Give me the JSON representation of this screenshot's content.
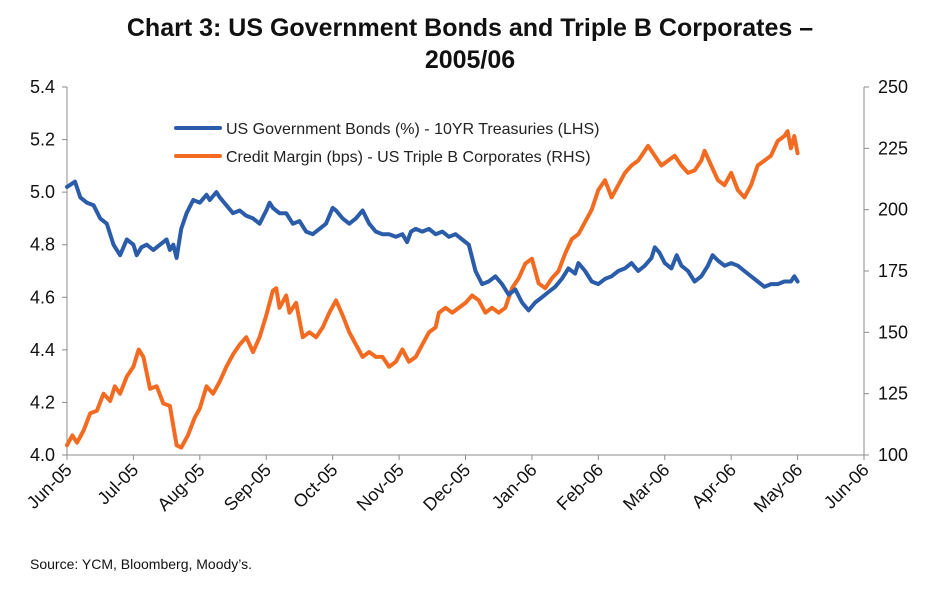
{
  "title_line1": "Chart 3: US Government Bonds and Triple B Corporates –",
  "title_line2": "2005/06",
  "source": "Source: YCM, Bloomberg, Moody’s.",
  "chart_data": {
    "type": "line",
    "title": "Chart 3: US Government Bonds and Triple B Corporates – 2005/06",
    "x_tick_labels": [
      "Jun-05",
      "Jul-05",
      "Aug-05",
      "Sep-05",
      "Oct-05",
      "Nov-05",
      "Dec-05",
      "Jan-06",
      "Feb-06",
      "Mar-06",
      "Apr-06",
      "May-06",
      "Jun-06"
    ],
    "y_left": {
      "ticks": [
        "4.0",
        "4.2",
        "4.4",
        "4.6",
        "4.8",
        "5.0",
        "5.2",
        "5.4"
      ],
      "range": [
        4.0,
        5.4
      ]
    },
    "y_right": {
      "ticks": [
        "100",
        "125",
        "150",
        "175",
        "200",
        "225",
        "250"
      ],
      "range": [
        100,
        250
      ]
    },
    "legend_position": "top-center",
    "grid": false,
    "series": [
      {
        "name": "US Government Bonds (%) - 10YR Treasuries (LHS)",
        "axis": "left",
        "color": "#2a5caa",
        "points": [
          [
            0,
            5.02
          ],
          [
            0.06,
            5.03
          ],
          [
            0.12,
            5.04
          ],
          [
            0.2,
            4.98
          ],
          [
            0.3,
            4.96
          ],
          [
            0.4,
            4.95
          ],
          [
            0.5,
            4.9
          ],
          [
            0.6,
            4.88
          ],
          [
            0.7,
            4.8
          ],
          [
            0.8,
            4.76
          ],
          [
            0.9,
            4.82
          ],
          [
            1.0,
            4.8
          ],
          [
            1.05,
            4.76
          ],
          [
            1.12,
            4.79
          ],
          [
            1.2,
            4.8
          ],
          [
            1.3,
            4.78
          ],
          [
            1.4,
            4.8
          ],
          [
            1.5,
            4.82
          ],
          [
            1.55,
            4.78
          ],
          [
            1.6,
            4.8
          ],
          [
            1.65,
            4.75
          ],
          [
            1.72,
            4.86
          ],
          [
            1.8,
            4.92
          ],
          [
            1.9,
            4.97
          ],
          [
            2.0,
            4.96
          ],
          [
            2.1,
            4.99
          ],
          [
            2.15,
            4.97
          ],
          [
            2.25,
            5.0
          ],
          [
            2.3,
            4.98
          ],
          [
            2.4,
            4.95
          ],
          [
            2.5,
            4.92
          ],
          [
            2.6,
            4.93
          ],
          [
            2.7,
            4.91
          ],
          [
            2.8,
            4.9
          ],
          [
            2.9,
            4.88
          ],
          [
            3.0,
            4.93
          ],
          [
            3.05,
            4.96
          ],
          [
            3.1,
            4.94
          ],
          [
            3.2,
            4.92
          ],
          [
            3.3,
            4.92
          ],
          [
            3.4,
            4.88
          ],
          [
            3.5,
            4.89
          ],
          [
            3.6,
            4.85
          ],
          [
            3.7,
            4.84
          ],
          [
            3.8,
            4.86
          ],
          [
            3.9,
            4.88
          ],
          [
            4.0,
            4.94
          ],
          [
            4.05,
            4.93
          ],
          [
            4.15,
            4.9
          ],
          [
            4.25,
            4.88
          ],
          [
            4.35,
            4.9
          ],
          [
            4.45,
            4.93
          ],
          [
            4.55,
            4.88
          ],
          [
            4.65,
            4.85
          ],
          [
            4.75,
            4.84
          ],
          [
            4.85,
            4.84
          ],
          [
            4.95,
            4.83
          ],
          [
            5.05,
            4.84
          ],
          [
            5.12,
            4.81
          ],
          [
            5.18,
            4.85
          ],
          [
            5.25,
            4.86
          ],
          [
            5.35,
            4.85
          ],
          [
            5.45,
            4.86
          ],
          [
            5.55,
            4.84
          ],
          [
            5.65,
            4.85
          ],
          [
            5.75,
            4.83
          ],
          [
            5.85,
            4.84
          ],
          [
            5.95,
            4.82
          ],
          [
            6.05,
            4.8
          ],
          [
            6.15,
            4.7
          ],
          [
            6.25,
            4.65
          ],
          [
            6.35,
            4.66
          ],
          [
            6.45,
            4.68
          ],
          [
            6.55,
            4.65
          ],
          [
            6.65,
            4.61
          ],
          [
            6.75,
            4.63
          ],
          [
            6.85,
            4.58
          ],
          [
            6.95,
            4.55
          ],
          [
            7.05,
            4.58
          ],
          [
            7.15,
            4.6
          ],
          [
            7.25,
            4.62
          ],
          [
            7.35,
            4.64
          ],
          [
            7.45,
            4.67
          ],
          [
            7.55,
            4.71
          ],
          [
            7.65,
            4.69
          ],
          [
            7.7,
            4.73
          ],
          [
            7.8,
            4.7
          ],
          [
            7.9,
            4.66
          ],
          [
            8.0,
            4.65
          ],
          [
            8.1,
            4.67
          ],
          [
            8.2,
            4.68
          ],
          [
            8.3,
            4.7
          ],
          [
            8.4,
            4.71
          ],
          [
            8.5,
            4.73
          ],
          [
            8.6,
            4.7
          ],
          [
            8.7,
            4.72
          ],
          [
            8.8,
            4.75
          ],
          [
            8.85,
            4.79
          ],
          [
            8.92,
            4.77
          ],
          [
            9.0,
            4.73
          ],
          [
            9.1,
            4.71
          ],
          [
            9.18,
            4.76
          ],
          [
            9.25,
            4.72
          ],
          [
            9.35,
            4.7
          ],
          [
            9.45,
            4.66
          ],
          [
            9.55,
            4.68
          ],
          [
            9.65,
            4.72
          ],
          [
            9.72,
            4.76
          ],
          [
            9.8,
            4.74
          ],
          [
            9.9,
            4.72
          ],
          [
            10.0,
            4.73
          ],
          [
            10.1,
            4.72
          ],
          [
            10.2,
            4.7
          ],
          [
            10.3,
            4.68
          ],
          [
            10.4,
            4.66
          ],
          [
            10.5,
            4.64
          ],
          [
            10.6,
            4.65
          ],
          [
            10.7,
            4.65
          ],
          [
            10.8,
            4.66
          ],
          [
            10.9,
            4.66
          ],
          [
            10.95,
            4.68
          ],
          [
            11.0,
            4.66
          ]
        ]
      },
      {
        "name": "Credit Margin (bps) - US Triple B Corporates (RHS)",
        "axis": "right",
        "color": "#f26b21",
        "points": [
          [
            0,
            104
          ],
          [
            0.08,
            108
          ],
          [
            0.15,
            105
          ],
          [
            0.25,
            110
          ],
          [
            0.35,
            117
          ],
          [
            0.45,
            118
          ],
          [
            0.55,
            125
          ],
          [
            0.65,
            122
          ],
          [
            0.72,
            128
          ],
          [
            0.8,
            125
          ],
          [
            0.9,
            132
          ],
          [
            1.0,
            136
          ],
          [
            1.08,
            143
          ],
          [
            1.15,
            140
          ],
          [
            1.25,
            127
          ],
          [
            1.35,
            128
          ],
          [
            1.45,
            121
          ],
          [
            1.55,
            120
          ],
          [
            1.65,
            104
          ],
          [
            1.72,
            103
          ],
          [
            1.82,
            108
          ],
          [
            1.92,
            115
          ],
          [
            2.0,
            119
          ],
          [
            2.1,
            128
          ],
          [
            2.2,
            125
          ],
          [
            2.3,
            130
          ],
          [
            2.4,
            136
          ],
          [
            2.5,
            141
          ],
          [
            2.6,
            145
          ],
          [
            2.7,
            148
          ],
          [
            2.8,
            142
          ],
          [
            2.9,
            148
          ],
          [
            3.0,
            157
          ],
          [
            3.1,
            167
          ],
          [
            3.15,
            168
          ],
          [
            3.2,
            160
          ],
          [
            3.3,
            165
          ],
          [
            3.35,
            158
          ],
          [
            3.45,
            162
          ],
          [
            3.55,
            148
          ],
          [
            3.65,
            150
          ],
          [
            3.75,
            148
          ],
          [
            3.85,
            152
          ],
          [
            3.95,
            158
          ],
          [
            4.05,
            163
          ],
          [
            4.15,
            157
          ],
          [
            4.25,
            150
          ],
          [
            4.35,
            145
          ],
          [
            4.45,
            140
          ],
          [
            4.55,
            142
          ],
          [
            4.65,
            140
          ],
          [
            4.75,
            140
          ],
          [
            4.85,
            136
          ],
          [
            4.95,
            138
          ],
          [
            5.05,
            143
          ],
          [
            5.15,
            138
          ],
          [
            5.25,
            140
          ],
          [
            5.35,
            145
          ],
          [
            5.45,
            150
          ],
          [
            5.55,
            152
          ],
          [
            5.6,
            158
          ],
          [
            5.7,
            160
          ],
          [
            5.8,
            158
          ],
          [
            5.9,
            160
          ],
          [
            6.0,
            162
          ],
          [
            6.1,
            165
          ],
          [
            6.2,
            163
          ],
          [
            6.3,
            158
          ],
          [
            6.4,
            160
          ],
          [
            6.5,
            158
          ],
          [
            6.6,
            160
          ],
          [
            6.7,
            168
          ],
          [
            6.8,
            172
          ],
          [
            6.9,
            178
          ],
          [
            7.0,
            180
          ],
          [
            7.1,
            170
          ],
          [
            7.2,
            168
          ],
          [
            7.3,
            172
          ],
          [
            7.4,
            175
          ],
          [
            7.5,
            182
          ],
          [
            7.6,
            188
          ],
          [
            7.7,
            190
          ],
          [
            7.8,
            195
          ],
          [
            7.9,
            200
          ],
          [
            8.0,
            208
          ],
          [
            8.1,
            212
          ],
          [
            8.2,
            205
          ],
          [
            8.3,
            210
          ],
          [
            8.4,
            215
          ],
          [
            8.5,
            218
          ],
          [
            8.6,
            220
          ],
          [
            8.7,
            224
          ],
          [
            8.75,
            226
          ],
          [
            8.85,
            222
          ],
          [
            8.95,
            218
          ],
          [
            9.05,
            220
          ],
          [
            9.15,
            222
          ],
          [
            9.25,
            218
          ],
          [
            9.35,
            215
          ],
          [
            9.45,
            216
          ],
          [
            9.55,
            220
          ],
          [
            9.6,
            224
          ],
          [
            9.7,
            218
          ],
          [
            9.8,
            212
          ],
          [
            9.9,
            210
          ],
          [
            10.0,
            215
          ],
          [
            10.1,
            208
          ],
          [
            10.2,
            205
          ],
          [
            10.3,
            210
          ],
          [
            10.4,
            218
          ],
          [
            10.5,
            220
          ],
          [
            10.6,
            222
          ],
          [
            10.7,
            228
          ],
          [
            10.8,
            230
          ],
          [
            10.85,
            232
          ],
          [
            10.9,
            225
          ],
          [
            10.95,
            230
          ],
          [
            11.0,
            223
          ]
        ]
      }
    ]
  }
}
